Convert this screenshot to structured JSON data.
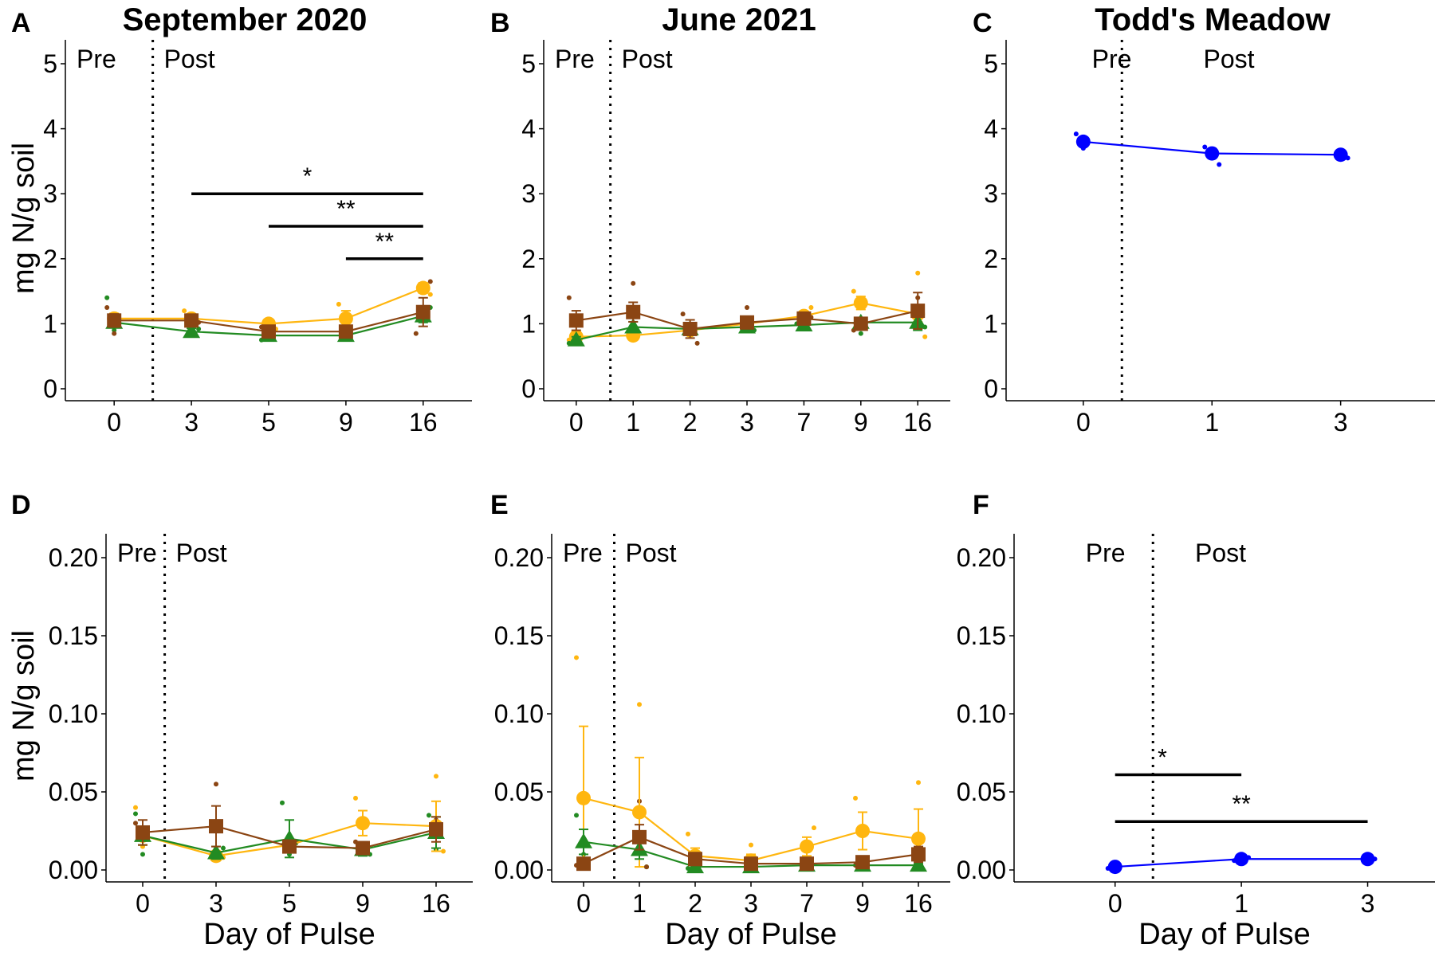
{
  "figure": {
    "ylabel": "mg N/g soil",
    "xlabel": "Day of Pulse",
    "pre_label": "Pre",
    "post_label": "Post",
    "colors": {
      "yellow": "#FFB60F",
      "brown": "#8B4513",
      "green": "#228B22",
      "blue": "#0000FF",
      "axis": "#000000"
    }
  },
  "chart_data": [
    {
      "panel": "A",
      "title": "September 2020",
      "type": "line",
      "categories": [
        "0",
        "3",
        "5",
        "9",
        "16"
      ],
      "ylim": [
        0,
        5
      ],
      "yticks": [
        "0",
        "1",
        "2",
        "3",
        "4",
        "5"
      ],
      "show_ylabel": true,
      "show_xlabel": false,
      "prepost_split": 0.5,
      "series": [
        {
          "color": "yellow",
          "shape": "circle",
          "values": [
            1.08,
            1.08,
            1.0,
            1.08,
            1.55
          ],
          "err": [
            0.08,
            0.06,
            0.04,
            0.12,
            0.08
          ]
        },
        {
          "color": "green",
          "shape": "triangle",
          "values": [
            1.02,
            0.88,
            0.82,
            0.82,
            1.12
          ],
          "err": [
            0.08,
            0.05,
            0.04,
            0.05,
            0.1
          ]
        },
        {
          "color": "brown",
          "shape": "square",
          "values": [
            1.05,
            1.05,
            0.88,
            0.88,
            1.18
          ],
          "err": [
            0.1,
            0.06,
            0.05,
            0.06,
            0.22
          ]
        }
      ],
      "points": [
        {
          "color": "green",
          "values": [
            [
              0,
              1.4
            ],
            [
              0,
              0.9
            ],
            [
              3,
              0.92
            ],
            [
              5,
              0.75
            ],
            [
              9,
              0.78
            ],
            [
              16,
              1.25
            ]
          ]
        },
        {
          "color": "brown",
          "values": [
            [
              0,
              1.25
            ],
            [
              0,
              0.85
            ],
            [
              3,
              1.02
            ],
            [
              5,
              0.95
            ],
            [
              9,
              0.95
            ],
            [
              16,
              1.65
            ],
            [
              16,
              0.85
            ]
          ]
        },
        {
          "color": "yellow",
          "values": [
            [
              3,
              1.2
            ],
            [
              3,
              0.95
            ],
            [
              5,
              0.92
            ],
            [
              9,
              1.3
            ],
            [
              9,
              0.95
            ],
            [
              16,
              1.45
            ]
          ]
        }
      ],
      "significance": [
        {
          "from": "3",
          "to": "16",
          "y": 3.0,
          "label": "*"
        },
        {
          "from": "5",
          "to": "16",
          "y": 2.5,
          "label": "**"
        },
        {
          "from": "9",
          "to": "16",
          "y": 2.0,
          "label": "**"
        }
      ]
    },
    {
      "panel": "B",
      "title": "June 2021",
      "type": "line",
      "categories": [
        "0",
        "1",
        "2",
        "3",
        "7",
        "9",
        "16"
      ],
      "ylim": [
        0,
        5
      ],
      "yticks": [
        "0",
        "1",
        "2",
        "3",
        "4",
        "5"
      ],
      "show_ylabel": false,
      "show_xlabel": false,
      "prepost_split": 0.6,
      "series": [
        {
          "color": "yellow",
          "shape": "circle",
          "values": [
            0.8,
            0.82,
            0.9,
            1.0,
            1.12,
            1.32,
            1.15
          ],
          "err": [
            0.08,
            0.05,
            0.06,
            0.05,
            0.06,
            0.1,
            0.12
          ]
        },
        {
          "color": "green",
          "shape": "triangle",
          "values": [
            0.75,
            0.95,
            0.92,
            0.95,
            0.98,
            1.02,
            1.02
          ],
          "err": [
            0.05,
            0.08,
            0.05,
            0.05,
            0.05,
            0.06,
            0.12
          ]
        },
        {
          "color": "brown",
          "shape": "square",
          "values": [
            1.05,
            1.18,
            0.92,
            1.02,
            1.08,
            1.0,
            1.2
          ],
          "err": [
            0.15,
            0.15,
            0.14,
            0.08,
            0.08,
            0.08,
            0.28
          ]
        }
      ],
      "points": [
        {
          "color": "brown",
          "values": [
            [
              0,
              1.4
            ],
            [
              1,
              1.62
            ],
            [
              2,
              0.7
            ],
            [
              2,
              1.15
            ],
            [
              3,
              1.25
            ],
            [
              7,
              1.1
            ],
            [
              9,
              0.9
            ],
            [
              16,
              1.4
            ]
          ]
        },
        {
          "color": "yellow",
          "values": [
            [
              0,
              0.75
            ],
            [
              1,
              0.85
            ],
            [
              7,
              1.25
            ],
            [
              9,
              1.5
            ],
            [
              16,
              1.78
            ],
            [
              16,
              0.8
            ]
          ]
        },
        {
          "color": "green",
          "values": [
            [
              0,
              0.7
            ],
            [
              1,
              1.0
            ],
            [
              3,
              0.9
            ],
            [
              7,
              1.0
            ],
            [
              9,
              0.85
            ],
            [
              16,
              0.95
            ]
          ]
        }
      ],
      "significance": []
    },
    {
      "panel": "C",
      "title": "Todd's Meadow",
      "type": "line",
      "categories": [
        "0",
        "1",
        "3"
      ],
      "ylim": [
        0,
        5
      ],
      "yticks": [
        "0",
        "1",
        "2",
        "3",
        "4",
        "5"
      ],
      "show_ylabel": false,
      "show_xlabel": false,
      "prepost_split": 0.3,
      "series": [
        {
          "color": "blue",
          "shape": "circle",
          "values": [
            3.8,
            3.62,
            3.6
          ],
          "err": [
            0.05,
            0.05,
            0.03
          ]
        }
      ],
      "points": [
        {
          "color": "blue",
          "values": [
            [
              0,
              3.92
            ],
            [
              0,
              3.7
            ],
            [
              1,
              3.45
            ],
            [
              1,
              3.72
            ],
            [
              3,
              3.65
            ],
            [
              3,
              3.55
            ]
          ]
        }
      ],
      "significance": []
    },
    {
      "panel": "D",
      "title": "",
      "type": "line",
      "categories": [
        "0",
        "3",
        "5",
        "9",
        "16"
      ],
      "ylim": [
        0,
        0.2
      ],
      "yticks": [
        "0.00",
        "0.05",
        "0.10",
        "0.15",
        "0.20"
      ],
      "show_ylabel": true,
      "show_xlabel": true,
      "prepost_split": 0.3,
      "series": [
        {
          "color": "yellow",
          "shape": "circle",
          "values": [
            0.022,
            0.009,
            0.016,
            0.03,
            0.028
          ],
          "err": [
            0.006,
            0.003,
            0.003,
            0.008,
            0.016
          ]
        },
        {
          "color": "green",
          "shape": "triangle",
          "values": [
            0.022,
            0.011,
            0.02,
            0.013,
            0.024
          ],
          "err": [
            0.006,
            0.004,
            0.012,
            0.004,
            0.01
          ]
        },
        {
          "color": "brown",
          "shape": "square",
          "values": [
            0.024,
            0.028,
            0.015,
            0.014,
            0.026
          ],
          "err": [
            0.008,
            0.013,
            0.004,
            0.004,
            0.008
          ]
        }
      ],
      "points": [
        {
          "color": "yellow",
          "values": [
            [
              0,
              0.04
            ],
            [
              0,
              0.015
            ],
            [
              3,
              0.008
            ],
            [
              9,
              0.046
            ],
            [
              16,
              0.06
            ],
            [
              16,
              0.012
            ]
          ]
        },
        {
          "color": "green",
          "values": [
            [
              0,
              0.036
            ],
            [
              0,
              0.01
            ],
            [
              3,
              0.014
            ],
            [
              5,
              0.043
            ],
            [
              5,
              0.01
            ],
            [
              9,
              0.01
            ],
            [
              16,
              0.035
            ],
            [
              16,
              0.013
            ]
          ]
        },
        {
          "color": "brown",
          "values": [
            [
              0,
              0.03
            ],
            [
              3,
              0.055
            ],
            [
              5,
              0.018
            ],
            [
              9,
              0.018
            ],
            [
              16,
              0.032
            ]
          ]
        }
      ],
      "significance": []
    },
    {
      "panel": "E",
      "title": "",
      "type": "line",
      "categories": [
        "0",
        "1",
        "2",
        "3",
        "7",
        "9",
        "16"
      ],
      "ylim": [
        0,
        0.2
      ],
      "yticks": [
        "0.00",
        "0.05",
        "0.10",
        "0.15",
        "0.20"
      ],
      "show_ylabel": false,
      "show_xlabel": true,
      "prepost_split": 0.55,
      "series": [
        {
          "color": "yellow",
          "shape": "circle",
          "values": [
            0.046,
            0.037,
            0.009,
            0.006,
            0.015,
            0.025,
            0.02
          ],
          "err": [
            0.046,
            0.035,
            0.005,
            0.004,
            0.006,
            0.012,
            0.019
          ]
        },
        {
          "color": "green",
          "shape": "triangle",
          "values": [
            0.018,
            0.013,
            0.002,
            0.002,
            0.003,
            0.003,
            0.003
          ],
          "err": [
            0.008,
            0.006,
            0.001,
            0.001,
            0.001,
            0.001,
            0.001
          ]
        },
        {
          "color": "brown",
          "shape": "square",
          "values": [
            0.004,
            0.021,
            0.007,
            0.004,
            0.004,
            0.005,
            0.01
          ],
          "err": [
            0.001,
            0.008,
            0.004,
            0.002,
            0.002,
            0.002,
            0.005
          ]
        }
      ],
      "points": [
        {
          "color": "yellow",
          "values": [
            [
              0,
              0.136
            ],
            [
              1,
              0.106
            ],
            [
              1,
              0.002
            ],
            [
              2,
              0.023
            ],
            [
              3,
              0.016
            ],
            [
              7,
              0.027
            ],
            [
              9,
              0.046
            ],
            [
              16,
              0.056
            ]
          ]
        },
        {
          "color": "green",
          "values": [
            [
              0,
              0.035
            ],
            [
              0,
              0.01
            ],
            [
              1,
              0.002
            ],
            [
              2,
              0.001
            ]
          ]
        },
        {
          "color": "brown",
          "values": [
            [
              0,
              0.003
            ],
            [
              1,
              0.044
            ],
            [
              1,
              0.002
            ],
            [
              9,
              0.003
            ],
            [
              16,
              0.016
            ]
          ]
        }
      ],
      "significance": []
    },
    {
      "panel": "F",
      "title": "",
      "type": "line",
      "categories": [
        "0",
        "1",
        "3"
      ],
      "ylim": [
        0,
        0.2
      ],
      "yticks": [
        "0.00",
        "0.05",
        "0.10",
        "0.15",
        "0.20"
      ],
      "show_ylabel": false,
      "show_xlabel": true,
      "prepost_split": 0.3,
      "series": [
        {
          "color": "blue",
          "shape": "circle",
          "values": [
            0.002,
            0.007,
            0.007
          ],
          "err": [
            0.001,
            0.001,
            0.001
          ]
        }
      ],
      "points": [
        {
          "color": "blue",
          "values": [
            [
              0,
              0.001
            ],
            [
              0,
              0.003
            ],
            [
              1,
              0.008
            ],
            [
              1,
              0.006
            ],
            [
              3,
              0.008
            ],
            [
              3,
              0.007
            ]
          ]
        }
      ],
      "significance": [
        {
          "from": "0",
          "to": "1",
          "y": 0.061,
          "label": "*"
        },
        {
          "from": "0",
          "to": "3",
          "y": 0.031,
          "label": "**"
        }
      ]
    }
  ]
}
